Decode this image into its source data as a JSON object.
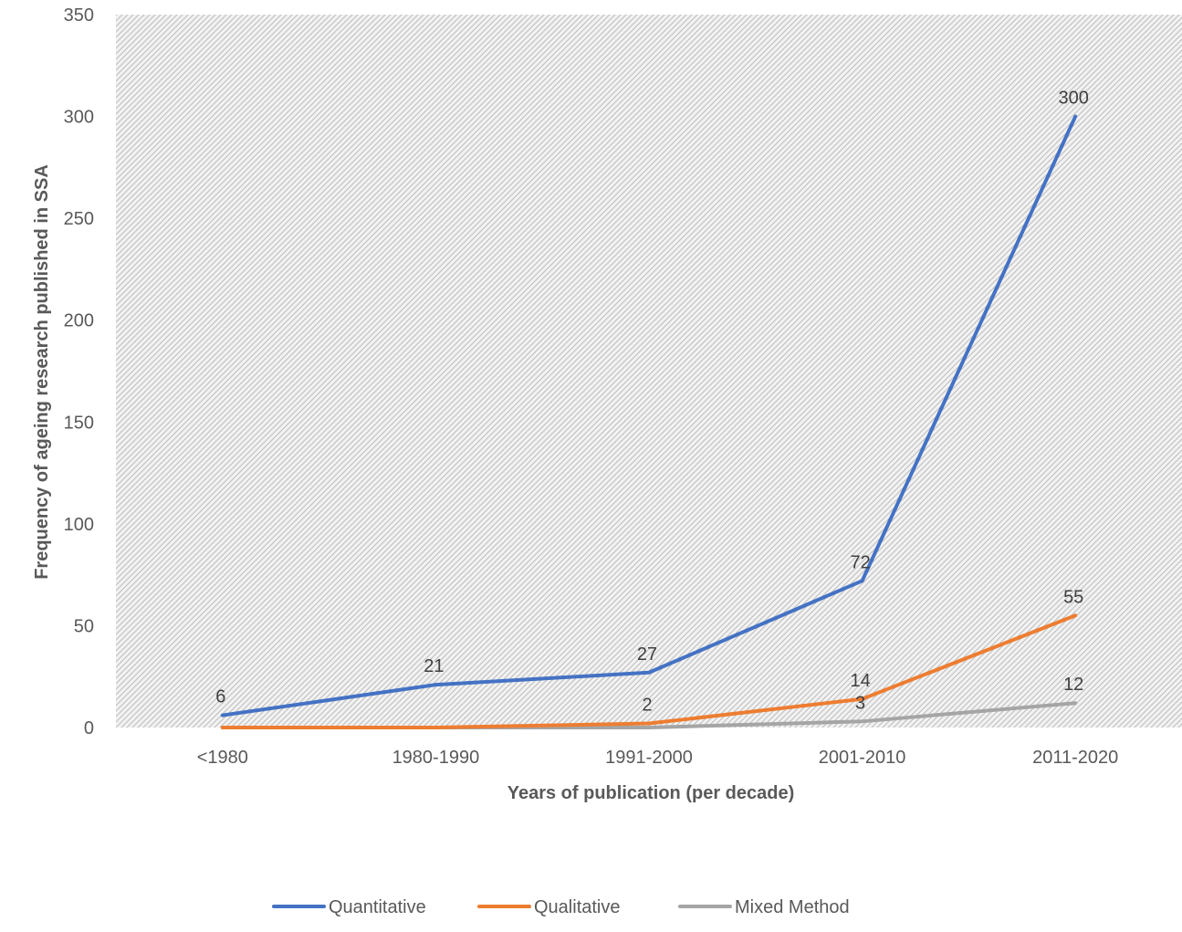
{
  "chart_data": {
    "type": "line",
    "title": "",
    "xlabel": "Years of publication (per decade)",
    "ylabel": "Frequency of  ageing research published in SSA",
    "categories": [
      "<1980",
      "1980-1990",
      "1991-2000",
      "2001-2010",
      "2011-2020"
    ],
    "ylim": [
      0,
      350
    ],
    "yticks": [
      0,
      50,
      100,
      150,
      200,
      250,
      300,
      350
    ],
    "grid": false,
    "legend_position": "bottom",
    "series": [
      {
        "name": "Quantitative",
        "color": "#4472C4",
        "values": [
          6,
          21,
          27,
          72,
          300
        ],
        "labels": [
          "6",
          "21",
          "27",
          "72",
          "300"
        ]
      },
      {
        "name": "Qualitative",
        "color": "#ED7D31",
        "values": [
          0,
          0,
          2,
          14,
          55
        ],
        "labels": [
          null,
          null,
          "2",
          "14",
          "55"
        ]
      },
      {
        "name": "Mixed Method",
        "color": "#A5A5A5",
        "values": [
          0,
          0,
          0,
          3,
          12
        ],
        "labels": [
          null,
          null,
          null,
          "3",
          "12"
        ]
      }
    ]
  }
}
